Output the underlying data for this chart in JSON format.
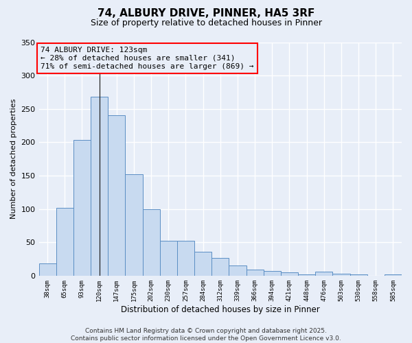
{
  "title": "74, ALBURY DRIVE, PINNER, HA5 3RF",
  "subtitle": "Size of property relative to detached houses in Pinner",
  "xlabel": "Distribution of detached houses by size in Pinner",
  "ylabel": "Number of detached properties",
  "bar_values": [
    18,
    102,
    203,
    268,
    240,
    152,
    100,
    52,
    52,
    36,
    27,
    15,
    9,
    7,
    5,
    2,
    6,
    3,
    2,
    0,
    2
  ],
  "bin_labels": [
    "38sqm",
    "65sqm",
    "93sqm",
    "120sqm",
    "147sqm",
    "175sqm",
    "202sqm",
    "230sqm",
    "257sqm",
    "284sqm",
    "312sqm",
    "339sqm",
    "366sqm",
    "394sqm",
    "421sqm",
    "448sqm",
    "476sqm",
    "503sqm",
    "530sqm",
    "558sqm",
    "585sqm"
  ],
  "bar_color": "#c8daf0",
  "bar_edge_color": "#5b8ec4",
  "bg_color": "#e8eef8",
  "grid_color": "#ffffff",
  "annotation_line1": "74 ALBURY DRIVE: 123sqm",
  "annotation_line2": "← 28% of detached houses are smaller (341)",
  "annotation_line3": "71% of semi-detached houses are larger (869) →",
  "property_line_x": 3,
  "ylim": [
    0,
    350
  ],
  "yticks": [
    0,
    50,
    100,
    150,
    200,
    250,
    300,
    350
  ],
  "footer_text": "Contains HM Land Registry data © Crown copyright and database right 2025.\nContains public sector information licensed under the Open Government Licence v3.0.",
  "title_fontsize": 11,
  "subtitle_fontsize": 9,
  "annotation_fontsize": 8,
  "footer_fontsize": 6.5,
  "ylabel_fontsize": 8,
  "xlabel_fontsize": 8.5
}
